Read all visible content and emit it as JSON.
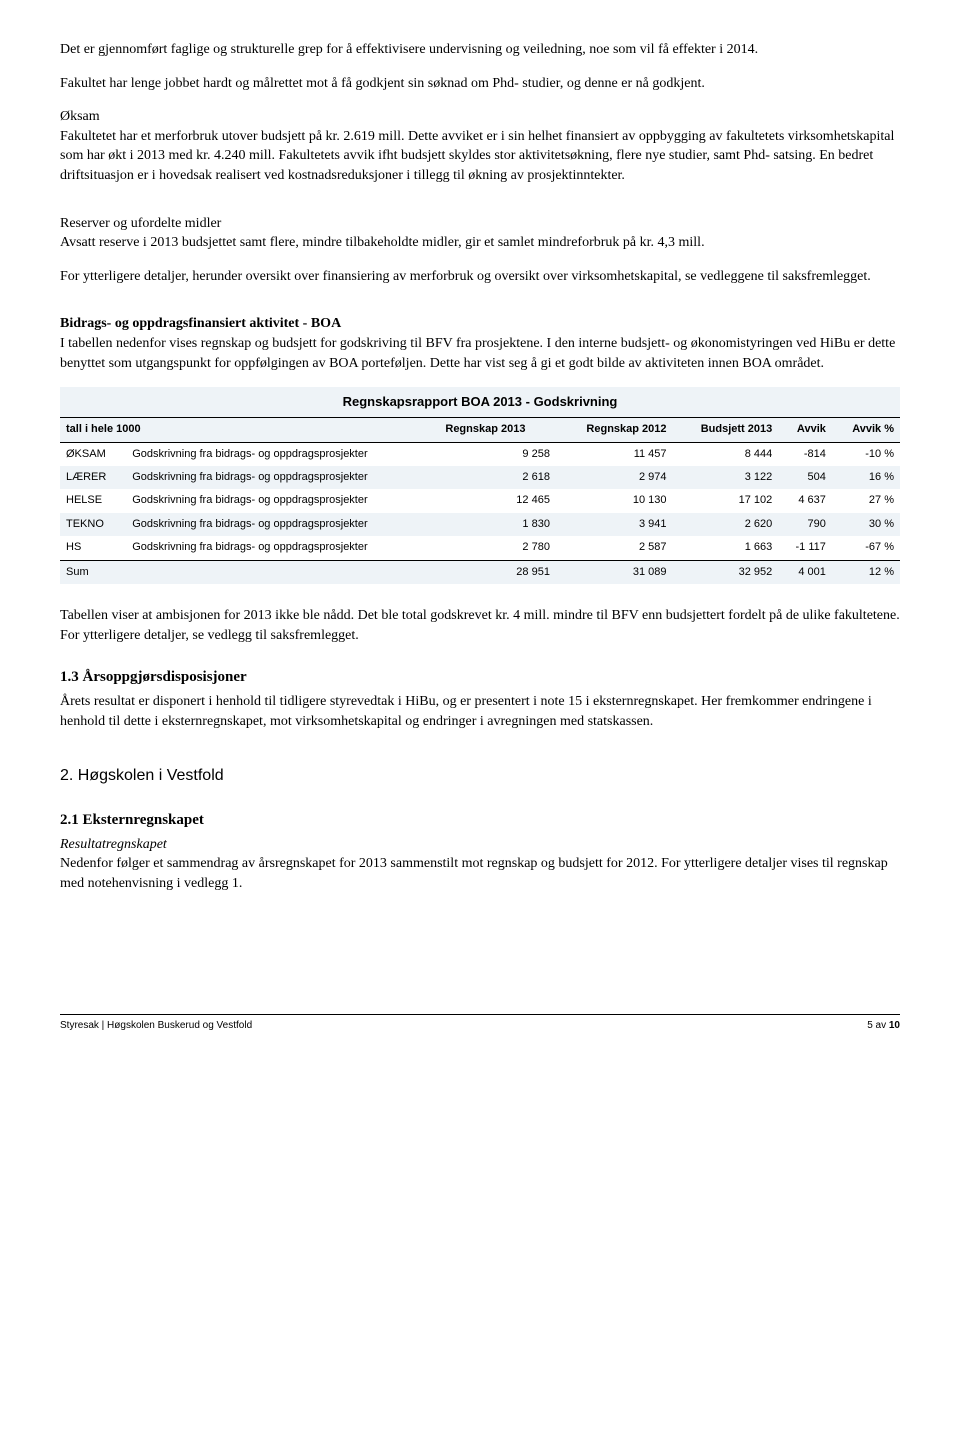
{
  "para1": "Det er gjennomført faglige og strukturelle grep for å effektivisere undervisning og veiledning, noe som vil få effekter i 2014.",
  "para2": "Fakultet har lenge jobbet hardt og målrettet mot å få godkjent sin søknad om Phd- studier, og denne er nå godkjent.",
  "para3_label": "Øksam",
  "para3": "Fakultetet har et merforbruk utover budsjett på kr. 2.619 mill. Dette avviket er i sin helhet finansiert av oppbygging av fakultetets virksomhetskapital som har økt i 2013 med kr. 4.240 mill. Fakultetets avvik ifht budsjett skyldes stor aktivitetsøkning, flere nye studier, samt Phd- satsing. En bedret driftsituasjon er i hovedsak realisert ved kostnadsreduksjoner i tillegg til økning av prosjektinntekter.",
  "para4_label": "Reserver og ufordelte midler",
  "para4": "Avsatt reserve i 2013 budsjettet samt flere, mindre tilbakeholdte midler, gir et samlet mindreforbruk på kr. 4,3 mill.",
  "para5": "For ytterligere detaljer, herunder oversikt over finansiering av merforbruk og oversikt over virksomhetskapital, se vedleggene til saksfremlegget.",
  "boa_heading": "Bidrags- og oppdragsfinansiert aktivitet - BOA",
  "para6": "I tabellen nedenfor vises regnskap og budsjett for godskriving til BFV fra prosjektene.  I den interne budsjett- og økonomistyringen ved HiBu er dette benyttet som utgangspunkt for oppfølgingen av BOA porteføljen.  Dette har vist seg å gi et godt bilde av aktiviteten innen BOA området.",
  "table": {
    "title": "Regnskapsrapport BOA 2013 - Godskrivning",
    "left_header": "tall i hele 1000",
    "columns": [
      "Regnskap 2013",
      "Regnskap 2012",
      "Budsjett 2013",
      "Avvik",
      "Avvik %"
    ],
    "row_desc": "Godskrivning fra bidrags- og oppdragsprosjekter",
    "rows": [
      {
        "label": "ØKSAM",
        "vals": [
          "9 258",
          "11 457",
          "8 444",
          "-814",
          "-10 %"
        ]
      },
      {
        "label": "LÆRER",
        "vals": [
          "2 618",
          "2 974",
          "3 122",
          "504",
          "16 %"
        ]
      },
      {
        "label": "HELSE",
        "vals": [
          "12 465",
          "10 130",
          "17 102",
          "4 637",
          "27 %"
        ]
      },
      {
        "label": "TEKNO",
        "vals": [
          "1 830",
          "3 941",
          "2 620",
          "790",
          "30 %"
        ]
      },
      {
        "label": "HS",
        "vals": [
          "2 780",
          "2 587",
          "1 663",
          "-1 117",
          "-67 %"
        ]
      }
    ],
    "sum": {
      "label": "Sum",
      "vals": [
        "28 951",
        "31 089",
        "32 952",
        "4 001",
        "12 %"
      ]
    },
    "band_colors": {
      "title_bg": "#eef3f7",
      "light_bg": "#eef3f7"
    }
  },
  "para7": "Tabellen viser at ambisjonen for 2013 ikke ble nådd.  Det ble total godskrevet kr. 4 mill. mindre til BFV enn budsjettert fordelt på de ulike fakultetene.  For ytterligere detaljer, se vedlegg til saksfremlegget.",
  "h13": "1.3 Årsoppgjørsdisposisjoner",
  "para8": "Årets resultat er disponert i henhold til tidligere styrevedtak i HiBu, og er presentert i note 15 i eksternregnskapet.  Her fremkommer endringene i henhold til dette i eksternregnskapet, mot virksomhetskapital og endringer i avregningen med statskassen.",
  "h2": "2.  Høgskolen i Vestfold",
  "h21": "2.1 Eksternregnskapet",
  "h21_sub": "Resultatregnskapet",
  "para9": "Nedenfor følger et sammendrag av årsregnskapet for 2013 sammenstilt mot regnskap og budsjett for 2012. For ytterligere detaljer vises til regnskap med notehenvisning i vedlegg 1.",
  "footer_left": "Styresak  | Høgskolen Buskerud og Vestfold",
  "footer_right_a": "5 av ",
  "footer_right_b": "10"
}
